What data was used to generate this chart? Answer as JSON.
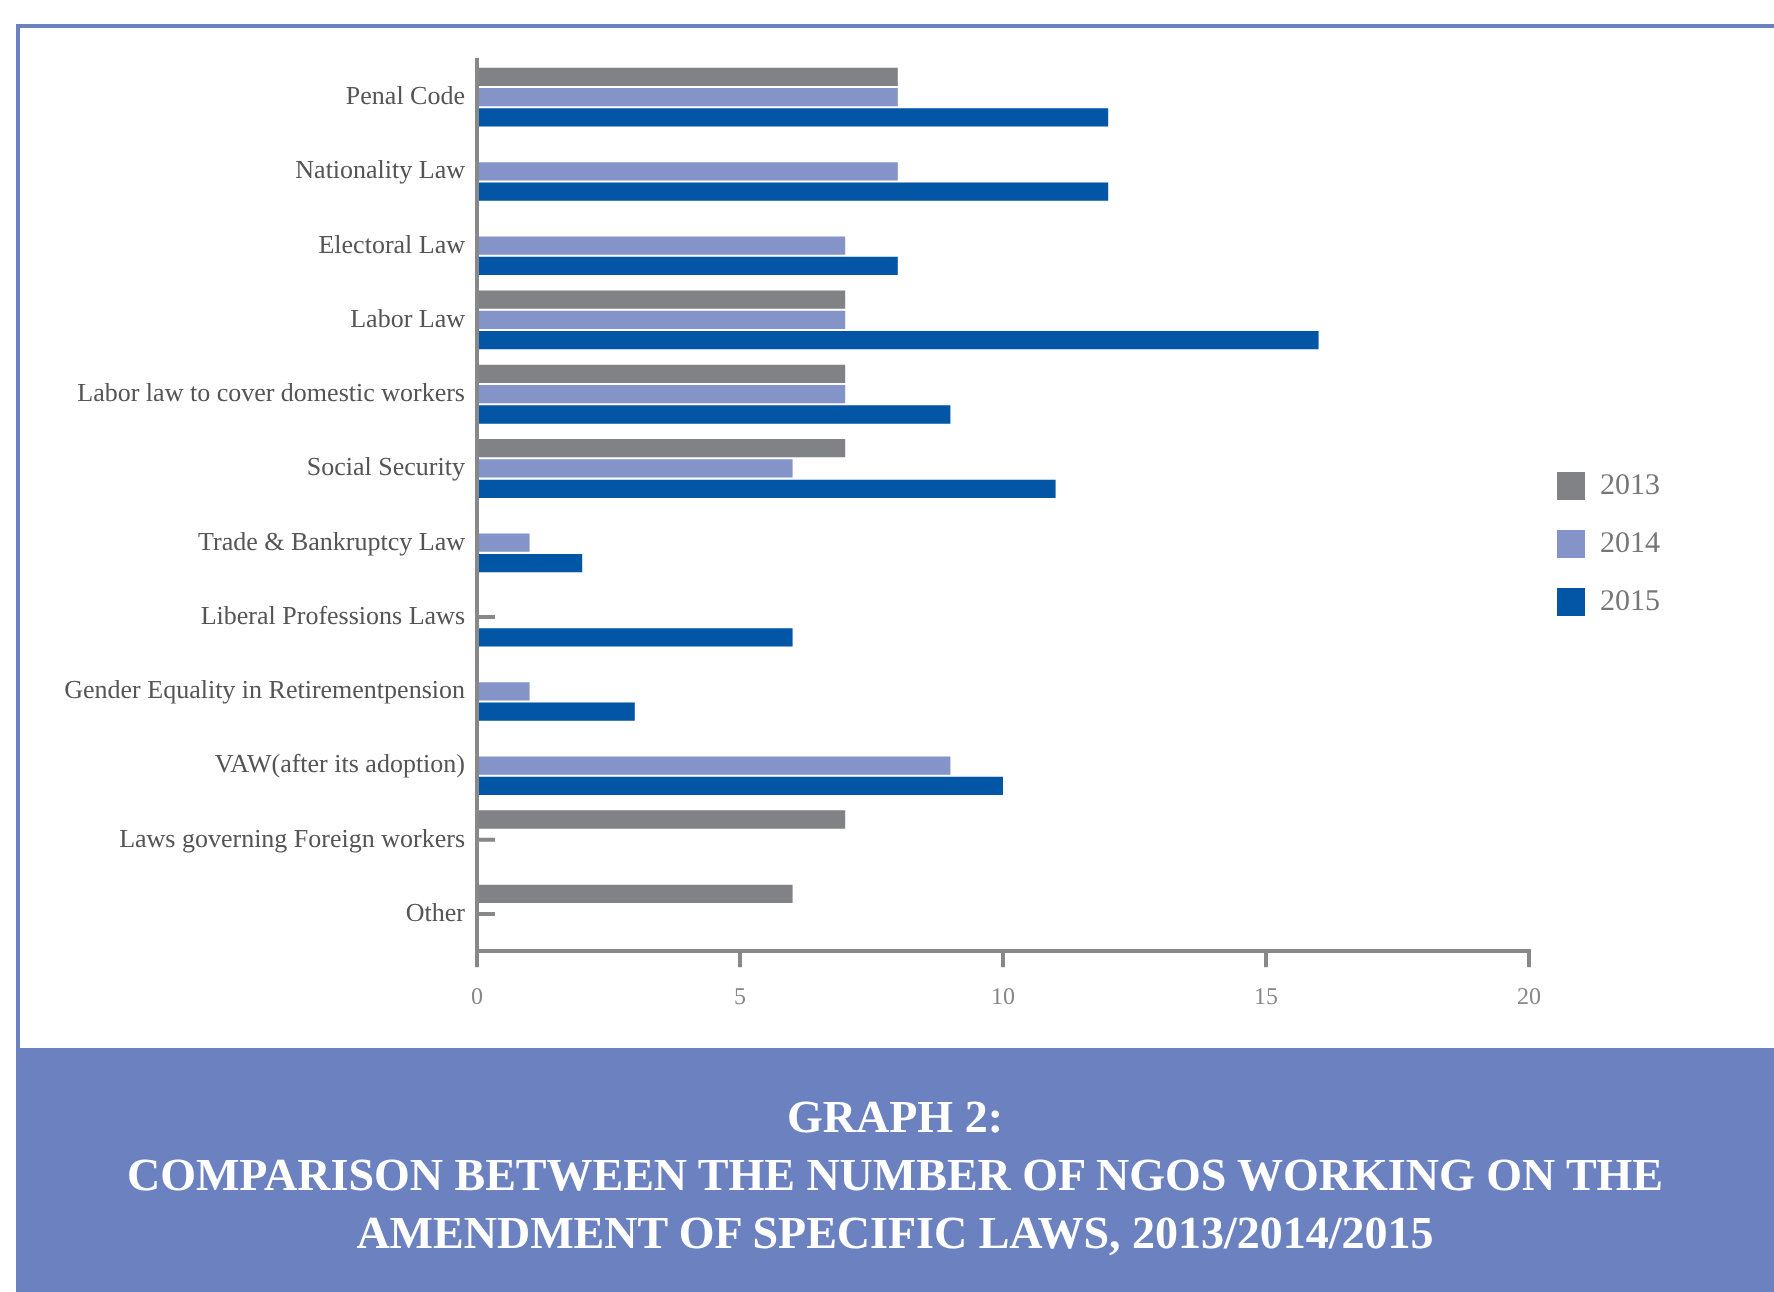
{
  "chart_data": {
    "type": "bar",
    "orientation": "horizontal",
    "title": "GRAPH 2:\nCOMPARISON BETWEEN THE NUMBER OF NGOS WORKING ON THE AMENDMENT OF SPECIFIC LAWS, 2013/2014/2015",
    "categories": [
      "Penal Code",
      "Nationality Law",
      "Electoral Law",
      "Labor Law",
      "Labor law to cover domestic workers",
      "Social Security",
      "Trade & Bankruptcy Law",
      "Liberal Professions Laws",
      "Gender Equality in Retirementpension",
      "VAW(after its adoption)",
      "Laws governing Foreign workers",
      "Other"
    ],
    "series": [
      {
        "name": "2013",
        "color": "#818286",
        "values": [
          8,
          null,
          null,
          7,
          7,
          7,
          null,
          null,
          null,
          null,
          7,
          6
        ]
      },
      {
        "name": "2014",
        "color": "#8493c8",
        "values": [
          8,
          8,
          7,
          7,
          7,
          6,
          1,
          null,
          1,
          9,
          null,
          null
        ]
      },
      {
        "name": "2015",
        "color": "#0355a6",
        "values": [
          12,
          12,
          8,
          16,
          9,
          11,
          2,
          6,
          3,
          10,
          null,
          null
        ]
      }
    ],
    "xlim": [
      0,
      20
    ],
    "xticks": [
      0,
      5,
      10,
      15,
      20
    ],
    "grid": false,
    "legend": "right"
  }
}
